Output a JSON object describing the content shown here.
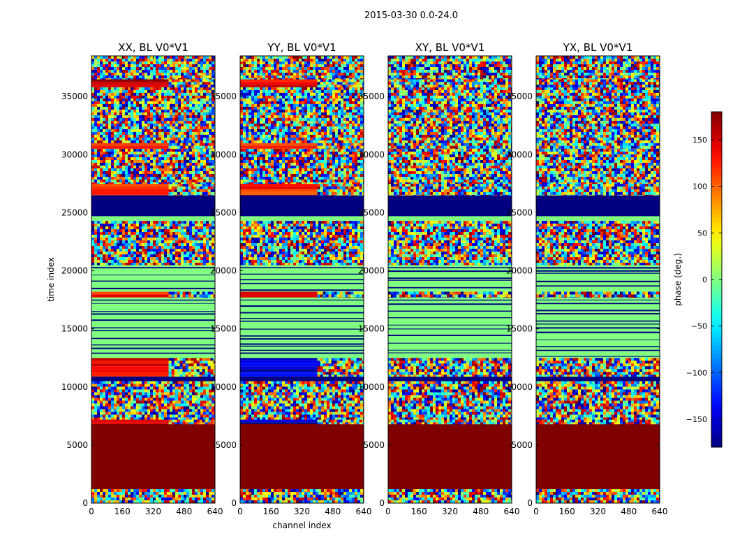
{
  "figure": {
    "suptitle": "2015-03-30 0.0-24.0"
  },
  "chart_data": [
    {
      "type": "heatmap",
      "title": "XX, BL V0*V1",
      "xlabel": "",
      "ylabel": "time index",
      "xlim": [
        0,
        640
      ],
      "ylim": [
        0,
        38500
      ],
      "xticks": [
        0,
        160,
        320,
        480,
        640
      ],
      "yticks": [
        0,
        5000,
        10000,
        15000,
        20000,
        25000,
        30000,
        35000
      ],
      "bands": [
        {
          "y": [
            0,
            1200
          ],
          "kind": "noise"
        },
        {
          "y": [
            1200,
            6800
          ],
          "kind": "solid",
          "value": 180
        },
        {
          "y": [
            6800,
            7200
          ],
          "kind": "split",
          "value": 120,
          "split_x": 400
        },
        {
          "y": [
            7200,
            10500
          ],
          "kind": "noise"
        },
        {
          "y": [
            10500,
            10900
          ],
          "kind": "solid",
          "value": -180
        },
        {
          "y": [
            10900,
            12500
          ],
          "kind": "split",
          "value": 140,
          "split_x": 400
        },
        {
          "y": [
            12500,
            17700
          ],
          "kind": "stripes",
          "value": 0
        },
        {
          "y": [
            17700,
            18200
          ],
          "kind": "split",
          "value": 120,
          "split_x": 400
        },
        {
          "y": [
            18200,
            20500
          ],
          "kind": "stripes",
          "value": 0
        },
        {
          "y": [
            20500,
            24300
          ],
          "kind": "noise"
        },
        {
          "y": [
            24300,
            24700
          ],
          "kind": "solid",
          "value": 0
        },
        {
          "y": [
            24700,
            26500
          ],
          "kind": "solid",
          "value": -180
        },
        {
          "y": [
            26500,
            27500
          ],
          "kind": "split",
          "value": 110,
          "split_x": 400
        },
        {
          "y": [
            27500,
            30500
          ],
          "kind": "noise"
        },
        {
          "y": [
            30500,
            31000
          ],
          "kind": "split",
          "value": 120,
          "split_x": 400
        },
        {
          "y": [
            31000,
            35800
          ],
          "kind": "noise"
        },
        {
          "y": [
            35800,
            36500
          ],
          "kind": "split",
          "value": 150,
          "split_x": 400
        },
        {
          "y": [
            36500,
            38500
          ],
          "kind": "noise"
        }
      ]
    },
    {
      "type": "heatmap",
      "title": "YY, BL V0*V1",
      "xlabel": "channel index",
      "ylabel": "",
      "xlim": [
        0,
        640
      ],
      "ylim": [
        0,
        38500
      ],
      "xticks": [
        0,
        160,
        320,
        480,
        640
      ],
      "yticks": [
        0,
        5000,
        10000,
        15000,
        20000,
        25000,
        30000,
        35000
      ],
      "bands": [
        {
          "y": [
            0,
            1200
          ],
          "kind": "noise"
        },
        {
          "y": [
            1200,
            6800
          ],
          "kind": "solid",
          "value": 180
        },
        {
          "y": [
            6800,
            7200
          ],
          "kind": "split",
          "value": -160,
          "split_x": 400
        },
        {
          "y": [
            7200,
            10500
          ],
          "kind": "noise"
        },
        {
          "y": [
            10500,
            10900
          ],
          "kind": "solid",
          "value": -180
        },
        {
          "y": [
            10900,
            12500
          ],
          "kind": "split",
          "value": -150,
          "split_x": 400
        },
        {
          "y": [
            12500,
            17700
          ],
          "kind": "stripes",
          "value": 0
        },
        {
          "y": [
            17700,
            18200
          ],
          "kind": "split",
          "value": 130,
          "split_x": 400
        },
        {
          "y": [
            18200,
            20500
          ],
          "kind": "stripes",
          "value": 0
        },
        {
          "y": [
            20500,
            24300
          ],
          "kind": "noise"
        },
        {
          "y": [
            24300,
            24700
          ],
          "kind": "solid",
          "value": 0
        },
        {
          "y": [
            24700,
            26500
          ],
          "kind": "solid",
          "value": -180
        },
        {
          "y": [
            26500,
            27500
          ],
          "kind": "split",
          "value": 120,
          "split_x": 400
        },
        {
          "y": [
            27500,
            30500
          ],
          "kind": "noise"
        },
        {
          "y": [
            30500,
            31000
          ],
          "kind": "split",
          "value": 110,
          "split_x": 400
        },
        {
          "y": [
            31000,
            35800
          ],
          "kind": "noise"
        },
        {
          "y": [
            35800,
            36500
          ],
          "kind": "split",
          "value": 140,
          "split_x": 400
        },
        {
          "y": [
            36500,
            38500
          ],
          "kind": "noise"
        }
      ]
    },
    {
      "type": "heatmap",
      "title": "XY, BL V0*V1",
      "xlabel": "",
      "ylabel": "",
      "xlim": [
        0,
        640
      ],
      "ylim": [
        0,
        38500
      ],
      "xticks": [
        0,
        160,
        320,
        480,
        640
      ],
      "yticks": [
        0,
        5000,
        10000,
        15000,
        20000,
        25000,
        30000,
        35000
      ],
      "bands": [
        {
          "y": [
            0,
            1200
          ],
          "kind": "noise"
        },
        {
          "y": [
            1200,
            6800
          ],
          "kind": "solid",
          "value": 180
        },
        {
          "y": [
            6800,
            7200
          ],
          "kind": "noise"
        },
        {
          "y": [
            7200,
            10500
          ],
          "kind": "noise"
        },
        {
          "y": [
            10500,
            10900
          ],
          "kind": "solid",
          "value": -180
        },
        {
          "y": [
            10900,
            12500
          ],
          "kind": "noise"
        },
        {
          "y": [
            12500,
            17700
          ],
          "kind": "stripes",
          "value": 0
        },
        {
          "y": [
            17700,
            18200
          ],
          "kind": "noise"
        },
        {
          "y": [
            18200,
            20500
          ],
          "kind": "stripes",
          "value": 0
        },
        {
          "y": [
            20500,
            24300
          ],
          "kind": "noise"
        },
        {
          "y": [
            24300,
            24700
          ],
          "kind": "solid",
          "value": 0
        },
        {
          "y": [
            24700,
            26500
          ],
          "kind": "solid",
          "value": -180
        },
        {
          "y": [
            26500,
            27500
          ],
          "kind": "noise"
        },
        {
          "y": [
            27500,
            30500
          ],
          "kind": "noise"
        },
        {
          "y": [
            30500,
            31000
          ],
          "kind": "noise"
        },
        {
          "y": [
            31000,
            35800
          ],
          "kind": "noise"
        },
        {
          "y": [
            35800,
            36500
          ],
          "kind": "noise"
        },
        {
          "y": [
            36500,
            38500
          ],
          "kind": "noise"
        }
      ]
    },
    {
      "type": "heatmap",
      "title": "YX, BL V0*V1",
      "xlabel": "",
      "ylabel": "",
      "xlim": [
        0,
        640
      ],
      "ylim": [
        0,
        38500
      ],
      "xticks": [
        0,
        160,
        320,
        480,
        640
      ],
      "yticks": [
        0,
        5000,
        10000,
        15000,
        20000,
        25000,
        30000,
        35000
      ],
      "bands": [
        {
          "y": [
            0,
            1200
          ],
          "kind": "noise"
        },
        {
          "y": [
            1200,
            6800
          ],
          "kind": "solid",
          "value": 180
        },
        {
          "y": [
            6800,
            7200
          ],
          "kind": "noise"
        },
        {
          "y": [
            7200,
            10500
          ],
          "kind": "noise"
        },
        {
          "y": [
            10500,
            10900
          ],
          "kind": "solid",
          "value": -180
        },
        {
          "y": [
            10900,
            12500
          ],
          "kind": "noise"
        },
        {
          "y": [
            12500,
            17700
          ],
          "kind": "stripes",
          "value": 0
        },
        {
          "y": [
            17700,
            18200
          ],
          "kind": "noise"
        },
        {
          "y": [
            18200,
            20500
          ],
          "kind": "stripes",
          "value": 0
        },
        {
          "y": [
            20500,
            24300
          ],
          "kind": "noise"
        },
        {
          "y": [
            24300,
            24700
          ],
          "kind": "solid",
          "value": 0
        },
        {
          "y": [
            24700,
            26500
          ],
          "kind": "solid",
          "value": -180
        },
        {
          "y": [
            26500,
            27500
          ],
          "kind": "noise"
        },
        {
          "y": [
            27500,
            30500
          ],
          "kind": "noise"
        },
        {
          "y": [
            30500,
            31000
          ],
          "kind": "noise"
        },
        {
          "y": [
            31000,
            35800
          ],
          "kind": "noise"
        },
        {
          "y": [
            35800,
            36500
          ],
          "kind": "noise"
        },
        {
          "y": [
            36500,
            38500
          ],
          "kind": "noise"
        }
      ]
    }
  ],
  "colorbar": {
    "label": "phase (deg.)",
    "range": [
      -180,
      180
    ],
    "ticks": [
      -150,
      -100,
      -50,
      0,
      50,
      100,
      150
    ],
    "colormap": "jet"
  }
}
